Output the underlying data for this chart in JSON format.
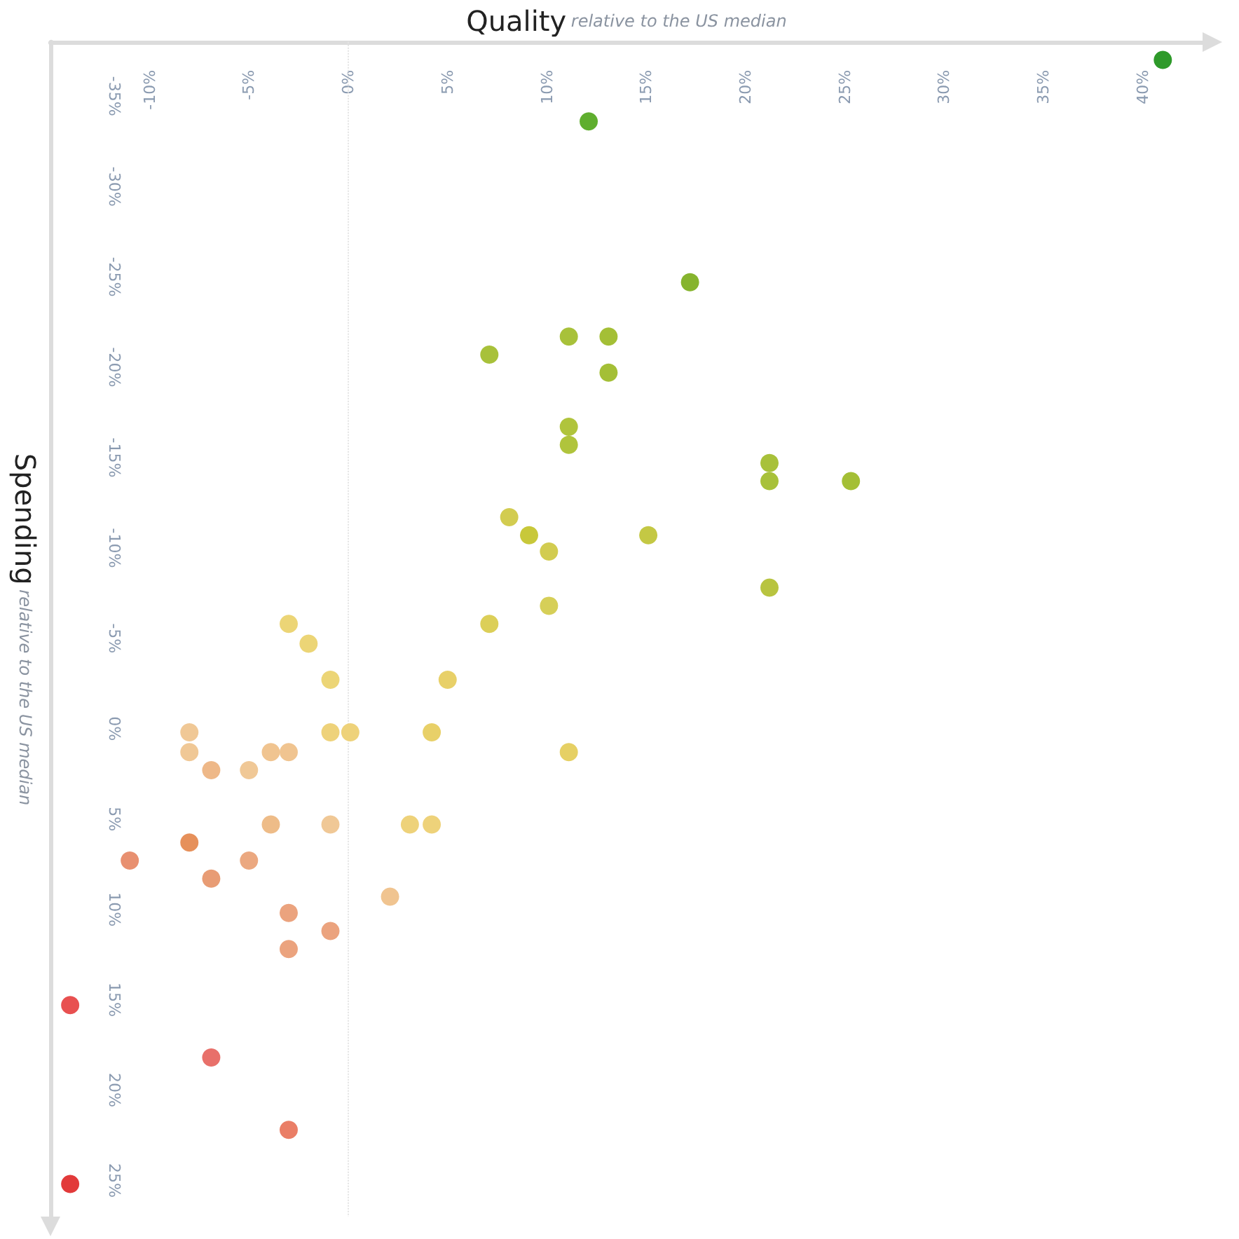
{
  "chart_data": {
    "type": "scatter",
    "xlabel": "Quality relative to the US median",
    "ylabel": "Spending relative to the US median",
    "x": [
      41,
      12.1,
      17.2,
      7.1,
      11.1,
      13.1,
      13.1,
      11.1,
      11.1,
      21.2,
      21.2,
      25.3,
      8.1,
      9.1,
      10.1,
      15.1,
      21.2,
      10.1,
      7.1,
      -3,
      -2,
      5,
      -0.9,
      -8,
      -8,
      -6.9,
      -5,
      -3.9,
      -3,
      -0.9,
      0.1,
      4.2,
      11.1,
      -3.9,
      -0.9,
      3.1,
      4.2,
      -8,
      -11,
      -5,
      -6.9,
      2.1,
      -3,
      -0.9,
      -3,
      -14,
      -6.9,
      -3,
      -14
    ],
    "values": [
      -37,
      -33.6,
      -24.7,
      -20.7,
      -21.7,
      -21.7,
      -19.7,
      -16.7,
      -15.7,
      -14.7,
      -13.7,
      -13.7,
      -11.7,
      -10.7,
      -9.8,
      -10.7,
      -7.8,
      -6.8,
      -5.8,
      -5.8,
      -4.7,
      -2.7,
      -2.7,
      0.2,
      1.3,
      2.3,
      2.3,
      1.3,
      1.3,
      0.2,
      0.2,
      0.2,
      1.3,
      5.3,
      5.3,
      5.3,
      5.3,
      6.3,
      7.3,
      7.3,
      8.3,
      9.3,
      10.2,
      11.2,
      12.2,
      15.3,
      18.2,
      22.2,
      25.2
    ],
    "colors": [
      "#2e9a2a",
      "#5fae2e",
      "#86b42e",
      "#a8c13a",
      "#a8c13a",
      "#a4bf36",
      "#a4bf36",
      "#b0c43c",
      "#b0c43c",
      "#a8c13a",
      "#a8c13a",
      "#a4bf36",
      "#d2cc50",
      "#c8c83a",
      "#d2cc50",
      "#c4c844",
      "#b8c440",
      "#d6cf58",
      "#dccf58",
      "#ecd576",
      "#ecd576",
      "#e8d068",
      "#ecd576",
      "#f0c896",
      "#f0c896",
      "#eeb888",
      "#f0c896",
      "#f0c490",
      "#f0c490",
      "#eed27a",
      "#eed27a",
      "#e8d068",
      "#e6d064",
      "#eebc88",
      "#f0c896",
      "#eed27a",
      "#eed27a",
      "#e6905a",
      "#e89070",
      "#eba880",
      "#e89c74",
      "#f0c490",
      "#eba37e",
      "#eba37e",
      "#eba37e",
      "#e85050",
      "#e8706a",
      "#ea7e66",
      "#e23a3a"
    ],
    "xlim": [
      -15,
      43
    ],
    "ylim": [
      27,
      -38
    ],
    "xticks": [
      {
        "value": -10,
        "label": "-10%"
      },
      {
        "value": -5,
        "label": "-5%"
      },
      {
        "value": 0,
        "label": "0%"
      },
      {
        "value": 5,
        "label": "5%"
      },
      {
        "value": 10,
        "label": "10%"
      },
      {
        "value": 15,
        "label": "15%"
      },
      {
        "value": 20,
        "label": "20%"
      },
      {
        "value": 25,
        "label": "25%"
      },
      {
        "value": 30,
        "label": "30%"
      },
      {
        "value": 35,
        "label": "35%"
      },
      {
        "value": 40,
        "label": "40%"
      }
    ],
    "yticks": [
      {
        "value": -35,
        "label": "-35%"
      },
      {
        "value": -30,
        "label": "-30%"
      },
      {
        "value": -25,
        "label": "-25%"
      },
      {
        "value": -20,
        "label": "-20%"
      },
      {
        "value": -15,
        "label": "-15%"
      },
      {
        "value": -10,
        "label": "-10%"
      },
      {
        "value": -5,
        "label": "-5%"
      },
      {
        "value": 0,
        "label": "0%"
      },
      {
        "value": 5,
        "label": "5%"
      },
      {
        "value": 10,
        "label": "10%"
      },
      {
        "value": 15,
        "label": "15%"
      },
      {
        "value": 20,
        "label": "20%"
      },
      {
        "value": 25,
        "label": "25%"
      }
    ],
    "ref_lines": [
      {
        "axis": "x",
        "value": 0,
        "color": "#e4e4e4",
        "line_style": "dotted"
      }
    ],
    "marker": "circle"
  }
}
